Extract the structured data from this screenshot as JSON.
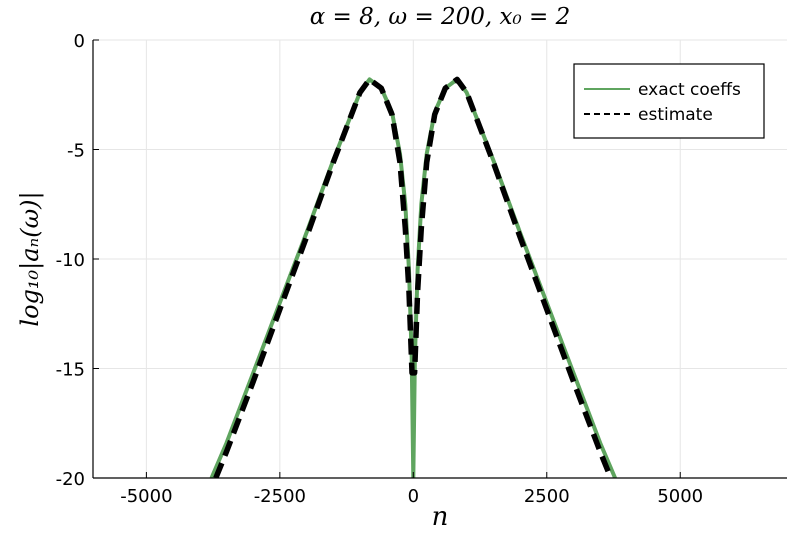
{
  "chart_data": {
    "type": "line",
    "title": "α = 8, ω = 200, x₀ = 2",
    "xlabel": "n",
    "ylabel": "log₁₀|aₙ(ω)|",
    "xlim": [
      -6000,
      7000
    ],
    "ylim": [
      -20,
      0
    ],
    "x_ticks": [
      -5000,
      -2500,
      0,
      2500,
      5000
    ],
    "x_tick_labels": [
      "-5000",
      "-2500",
      "0",
      "2500",
      "5000"
    ],
    "y_ticks": [
      0,
      -5,
      -10,
      -15,
      -20
    ],
    "y_tick_labels": [
      "0",
      "-5",
      "-10",
      "-15",
      "-20"
    ],
    "grid": true,
    "legend_position": "top-right",
    "series": [
      {
        "name": "exact coeffs",
        "style": "solid",
        "color": "#5fa55f",
        "x": [
          -3780,
          -3500,
          -3000,
          -2500,
          -2000,
          -1500,
          -1000,
          -820,
          -600,
          -400,
          -250,
          -150,
          -80,
          -30,
          0,
          30,
          80,
          150,
          250,
          400,
          600,
          820,
          1000,
          1500,
          2000,
          2500,
          3000,
          3500,
          3780
        ],
        "y": [
          -20,
          -18.4,
          -15.2,
          -12.0,
          -8.8,
          -5.5,
          -2.4,
          -1.8,
          -2.2,
          -3.3,
          -5.2,
          -7.5,
          -10.5,
          -14.5,
          -20,
          -14.5,
          -10.5,
          -7.5,
          -5.2,
          -3.3,
          -2.2,
          -1.8,
          -2.4,
          -5.5,
          -8.8,
          -12.0,
          -15.2,
          -18.4,
          -20
        ]
      },
      {
        "name": "estimate",
        "style": "dashed",
        "color": "#000000",
        "x": [
          -3700,
          -3500,
          -3000,
          -2500,
          -2000,
          -1500,
          -1000,
          -820,
          -600,
          -400,
          -250,
          -150,
          -80,
          -25,
          25,
          80,
          150,
          250,
          400,
          600,
          820,
          1000,
          1500,
          2000,
          2500,
          3000,
          3500,
          3700
        ],
        "y": [
          -20,
          -18.8,
          -15.6,
          -12.3,
          -9.0,
          -5.6,
          -2.4,
          -1.8,
          -2.2,
          -3.4,
          -5.6,
          -8.6,
          -11.5,
          -15.2,
          -15.2,
          -11.5,
          -8.6,
          -5.6,
          -3.4,
          -2.2,
          -1.8,
          -2.4,
          -5.6,
          -9.0,
          -12.3,
          -15.6,
          -18.8,
          -20
        ]
      }
    ]
  }
}
